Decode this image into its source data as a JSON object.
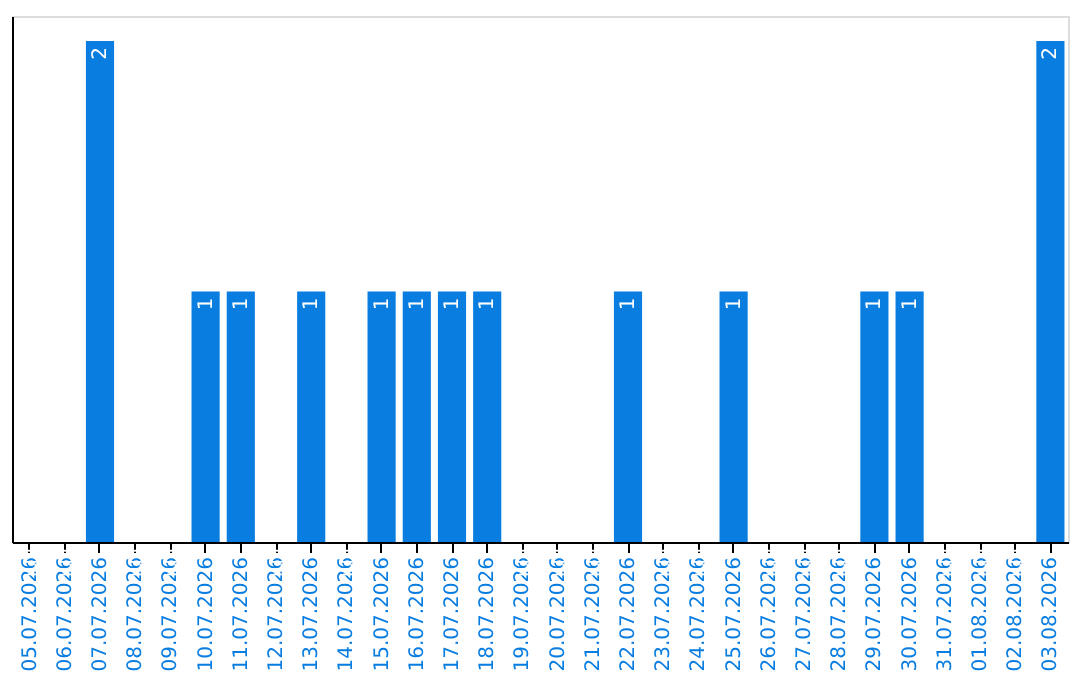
{
  "chart_data": {
    "type": "bar",
    "categories": [
      "05.07.2026",
      "06.07.2026",
      "07.07.2026",
      "08.07.2026",
      "09.07.2026",
      "10.07.2026",
      "11.07.2026",
      "12.07.2026",
      "13.07.2026",
      "14.07.2026",
      "15.07.2026",
      "16.07.2026",
      "17.07.2026",
      "18.07.2026",
      "19.07.2026",
      "20.07.2026",
      "21.07.2026",
      "22.07.2026",
      "23.07.2026",
      "24.07.2026",
      "25.07.2026",
      "26.07.2026",
      "27.07.2026",
      "28.07.2026",
      "29.07.2026",
      "30.07.2026",
      "31.07.2026",
      "01.08.2026",
      "02.08.2026",
      "03.08.2026"
    ],
    "values": [
      0,
      0,
      2,
      0,
      0,
      1,
      1,
      0,
      1,
      0,
      1,
      1,
      1,
      1,
      0,
      0,
      0,
      1,
      0,
      0,
      1,
      0,
      0,
      0,
      1,
      1,
      0,
      0,
      0,
      2
    ],
    "value_labels": [
      null,
      null,
      "2",
      null,
      null,
      "1",
      "1",
      null,
      "1",
      null,
      "1",
      "1",
      "1",
      "1",
      null,
      null,
      null,
      "1",
      null,
      null,
      "1",
      null,
      null,
      null,
      "1",
      "1",
      null,
      null,
      null,
      "2"
    ],
    "color": "#0a7de0",
    "tick_labels": "x",
    "grid": false
  }
}
